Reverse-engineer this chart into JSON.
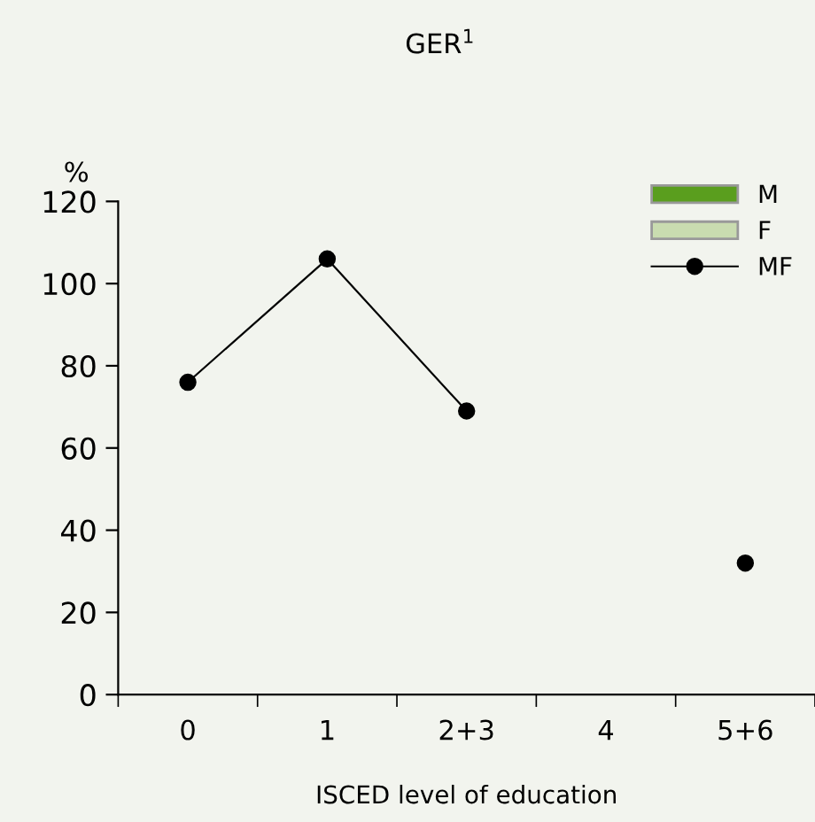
{
  "chart_data": {
    "type": "bar",
    "title": "GER$^{1}$",
    "xlabel": "ISCED level of education",
    "ylabel": "%",
    "categories": [
      "0",
      "1",
      "2+3",
      "4",
      "5+6"
    ],
    "series": [
      {
        "name": "M",
        "color": "#5a9e1e",
        "values": [
          null,
          null,
          null,
          null,
          null
        ]
      },
      {
        "name": "F",
        "color": "#c9dcb0",
        "values": [
          null,
          null,
          null,
          null,
          null
        ]
      },
      {
        "name": "MF",
        "type": "line",
        "color": "#000000",
        "values": [
          76,
          106,
          69,
          null,
          32
        ]
      }
    ],
    "ylim": [
      0,
      120
    ],
    "yticks": [
      0,
      20,
      40,
      60,
      80,
      100,
      120
    ],
    "grid": false,
    "legend": "top right",
    "marker": "circle",
    "line_style": "solid"
  }
}
